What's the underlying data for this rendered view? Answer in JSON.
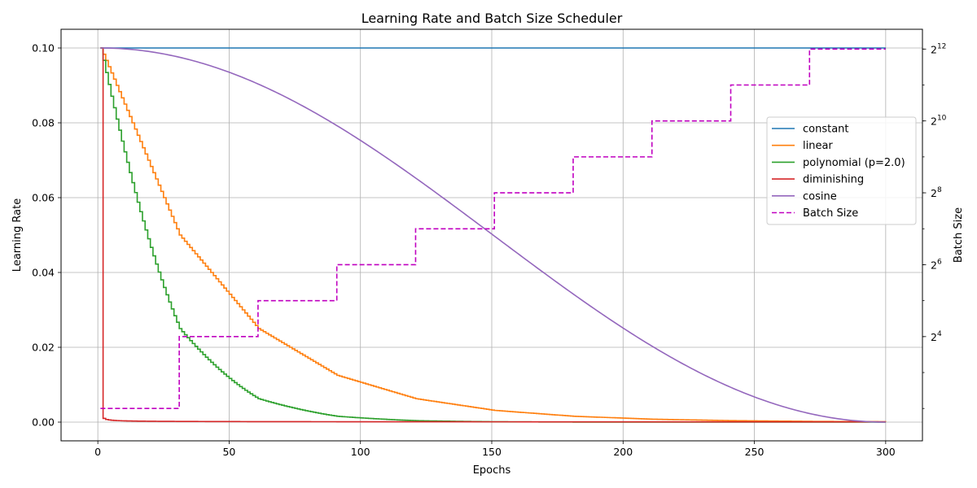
{
  "chart_data": {
    "type": "line",
    "title": "Learning Rate and Batch Size Scheduler",
    "xlabel": "Epochs",
    "ylabel": "Learning Rate",
    "y2label": "Batch Size",
    "xlim": [
      -14,
      314
    ],
    "ylim": [
      -0.005,
      0.105
    ],
    "y2scale": "log2",
    "y2lim_log2": [
      1.1,
      12.55
    ],
    "xticks": [
      0,
      50,
      100,
      150,
      200,
      250,
      300
    ],
    "yticks": [
      "0.00",
      "0.02",
      "0.04",
      "0.06",
      "0.08",
      "0.10"
    ],
    "y2ticks": [
      {
        "base": "2",
        "exp": "4",
        "value": 16
      },
      {
        "base": "2",
        "exp": "6",
        "value": 64
      },
      {
        "base": "2",
        "exp": "8",
        "value": 256
      },
      {
        "base": "2",
        "exp": "10",
        "value": 1024
      },
      {
        "base": "2",
        "exp": "12",
        "value": 4096
      }
    ],
    "grid": true,
    "legend_position": "center-right",
    "epochs": [
      1,
      300
    ],
    "base_lr": 0.1,
    "stage_length": 30,
    "series": [
      {
        "name": "constant",
        "color": "#1f77b4",
        "style": "solid",
        "kind": "constant"
      },
      {
        "name": "linear",
        "color": "#ff7f0e",
        "style": "solid",
        "kind": "linear"
      },
      {
        "name": "polynomial (p=2.0)",
        "color": "#2ca02c",
        "style": "solid",
        "kind": "polynomial",
        "power": 2.0
      },
      {
        "name": "diminishing",
        "color": "#d62728",
        "style": "solid",
        "kind": "diminishing"
      },
      {
        "name": "cosine",
        "color": "#9467bd",
        "style": "solid",
        "kind": "cosine"
      },
      {
        "name": "Batch Size",
        "color": "#c000c0",
        "style": "dashed",
        "kind": "batch",
        "steps": [
          {
            "start": 1,
            "end": 30,
            "value": 4
          },
          {
            "start": 31,
            "end": 60,
            "value": 16
          },
          {
            "start": 61,
            "end": 90,
            "value": 32
          },
          {
            "start": 91,
            "end": 120,
            "value": 64
          },
          {
            "start": 121,
            "end": 150,
            "value": 128
          },
          {
            "start": 151,
            "end": 180,
            "value": 256
          },
          {
            "start": 181,
            "end": 210,
            "value": 512
          },
          {
            "start": 211,
            "end": 240,
            "value": 1024
          },
          {
            "start": 241,
            "end": 270,
            "value": 2048
          },
          {
            "start": 271,
            "end": 300,
            "value": 4096
          }
        ]
      }
    ]
  }
}
